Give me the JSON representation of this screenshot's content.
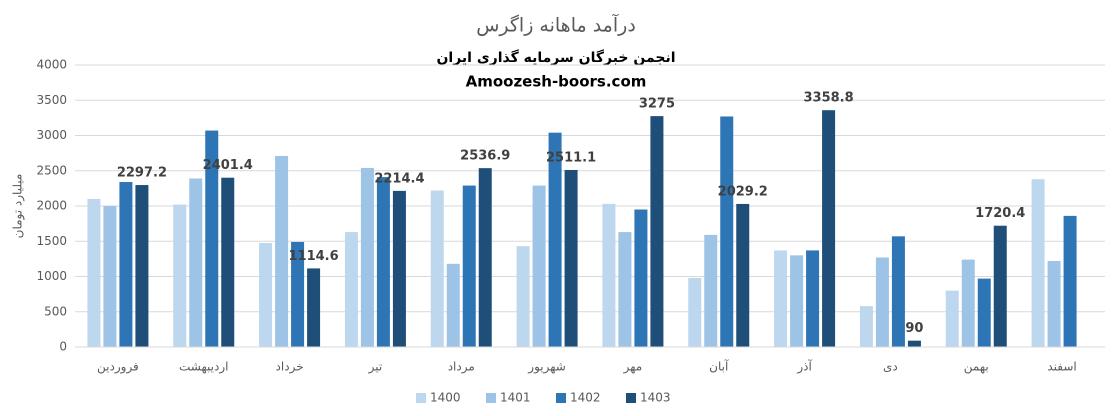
{
  "chart_data": {
    "type": "bar",
    "title": "درآمد ماهانه زاگرس",
    "subtitles": [
      "انجمن خبرگان سرمایه گذاری ایران",
      "Amoozesh-boors.com"
    ],
    "y_label": "میلیارد تومان",
    "categories": [
      "فروردین",
      "اردیبهشت",
      "خرداد",
      "تیر",
      "مرداد",
      "شهریور",
      "مهر",
      "آبان",
      "آذر",
      "دی",
      "بهمن",
      "اسفند"
    ],
    "series": [
      {
        "name": "1400",
        "color": "#bdd7ee",
        "values": [
          2100,
          2020,
          1475,
          1630,
          2220,
          1430,
          2030,
          980,
          1370,
          580,
          800,
          2380
        ]
      },
      {
        "name": "1401",
        "color": "#9dc3e6",
        "values": [
          2000,
          2390,
          2710,
          2540,
          1180,
          2290,
          1630,
          1590,
          1300,
          1270,
          1240,
          1220
        ]
      },
      {
        "name": "1402",
        "color": "#2e75b6",
        "values": [
          2340,
          3070,
          1490,
          2410,
          2290,
          3040,
          1950,
          3270,
          1370,
          1570,
          970,
          1860
        ]
      },
      {
        "name": "1403",
        "color": "#1f4e79",
        "values": [
          2297.2,
          2401.4,
          1114.6,
          2214.4,
          2536.9,
          2511.1,
          3275,
          2029.2,
          3358.8,
          90,
          1720.4,
          null
        ],
        "data_labels": true
      }
    ],
    "ylim": [
      0,
      4000
    ],
    "yticks": [
      0,
      500,
      1000,
      1500,
      2000,
      2500,
      3000,
      3500,
      4000
    ],
    "grid": true,
    "legend": "bottom"
  }
}
